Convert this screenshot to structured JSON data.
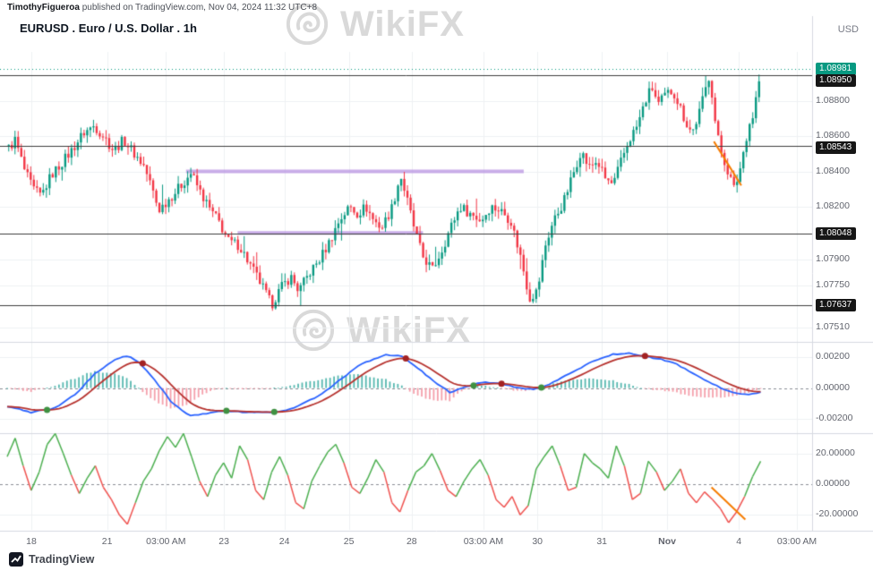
{
  "meta": {
    "attribution_author": "TimothyFigueroa",
    "attribution_rest": " published on TradingView.com, Nov 04, 2024 11:32 UTC+8",
    "title": "EURUSD . Euro / U.S. Dollar . 1h",
    "currency": "USD",
    "watermark": "WikiFX",
    "footer_logo": "TradingView"
  },
  "axes": {
    "price_labels": [
      {
        "text": "1.08981",
        "value": 1.08981,
        "badge": "green"
      },
      {
        "text": "1.08950",
        "value": 1.0895,
        "badge": "black"
      },
      {
        "text": "1.08800",
        "value": 1.088
      },
      {
        "text": "1.08600",
        "value": 1.086
      },
      {
        "text": "1.08543",
        "value": 1.08543,
        "badge": "black"
      },
      {
        "text": "1.08400",
        "value": 1.084
      },
      {
        "text": "1.08200",
        "value": 1.082
      },
      {
        "text": "1.08048",
        "value": 1.08048,
        "badge": "black"
      },
      {
        "text": "1.07900",
        "value": 1.079
      },
      {
        "text": "1.07750",
        "value": 1.0775
      },
      {
        "text": "1.07637",
        "value": 1.07637,
        "badge": "black"
      },
      {
        "text": "1.07510",
        "value": 1.0751
      }
    ],
    "macd_labels": [
      {
        "text": "0.00200",
        "value": 0.002
      },
      {
        "text": "0.00000",
        "value": 0
      },
      {
        "text": "-0.00200",
        "value": -0.002
      }
    ],
    "momentum_labels": [
      {
        "text": "20.00000",
        "value": 20
      },
      {
        "text": "0.00000",
        "value": 0
      },
      {
        "text": "-20.00000",
        "value": -20
      }
    ],
    "time_labels": [
      {
        "label": "18",
        "f": 0.03
      },
      {
        "label": "21",
        "f": 0.124
      },
      {
        "label": "03:00 AM",
        "f": 0.197
      },
      {
        "label": "23",
        "f": 0.269
      },
      {
        "label": "24",
        "f": 0.344
      },
      {
        "label": "25",
        "f": 0.424
      },
      {
        "label": "28",
        "f": 0.502
      },
      {
        "label": "03:00 AM",
        "f": 0.591
      },
      {
        "label": "30",
        "f": 0.658
      },
      {
        "label": "31",
        "f": 0.738
      },
      {
        "label": "Nov",
        "f": 0.819,
        "bold": true
      },
      {
        "label": "4",
        "f": 0.908
      },
      {
        "label": "03:00 AM",
        "f": 0.98
      }
    ]
  },
  "chart_data": {
    "type": "candlestick",
    "title": "EURUSD . Euro / U.S. Dollar . 1h",
    "symbol": "EURUSD",
    "timeframe": "1h",
    "data_fraction": 0.935,
    "colors": {
      "up": "#089981",
      "down": "#f23645",
      "macd_line": "#2962ff",
      "signal_line": "#b6322e",
      "hist_pos": "#57b8b0",
      "hist_neg": "#f5a0ab",
      "dot_up": "#3f9142",
      "dot_down": "#a32222",
      "momentum_pos": "#4caf50",
      "momentum_neg": "#ef5350",
      "trendline": "#f57c00",
      "zone": "#b48ce0",
      "level": "#3c3c3c",
      "current": "#089981"
    },
    "price_panel": {
      "ylim": [
        1.0744,
        1.0908
      ],
      "candles": 240,
      "current_price": 1.08981,
      "levels": [
        {
          "price": 1.0895
        },
        {
          "price": 1.08543
        },
        {
          "price": 1.08048
        },
        {
          "price": 1.07637
        }
      ],
      "zones": [
        {
          "price": 1.084,
          "f_start": 0.222,
          "f_end": 0.641
        },
        {
          "price": 1.0805,
          "f_start": 0.286,
          "f_end": 0.516
        }
      ],
      "trendline": {
        "f_start": 0.877,
        "p_start": 1.0857,
        "f_end": 0.911,
        "p_end": 1.0832
      },
      "path_keyframes": [
        [
          0.0,
          1.0852
        ],
        [
          0.01,
          1.0858
        ],
        [
          0.022,
          1.084
        ],
        [
          0.032,
          1.083
        ],
        [
          0.042,
          1.0826
        ],
        [
          0.055,
          1.0838
        ],
        [
          0.068,
          1.0845
        ],
        [
          0.08,
          1.0852
        ],
        [
          0.095,
          1.0862
        ],
        [
          0.108,
          1.0866
        ],
        [
          0.12,
          1.086
        ],
        [
          0.132,
          1.0852
        ],
        [
          0.145,
          1.0858
        ],
        [
          0.158,
          1.085
        ],
        [
          0.17,
          1.0843
        ],
        [
          0.18,
          1.083
        ],
        [
          0.188,
          1.0818
        ],
        [
          0.2,
          1.0824
        ],
        [
          0.212,
          1.083
        ],
        [
          0.228,
          1.0839
        ],
        [
          0.24,
          1.0828
        ],
        [
          0.252,
          1.0818
        ],
        [
          0.262,
          1.0812
        ],
        [
          0.275,
          1.08
        ],
        [
          0.288,
          1.0798
        ],
        [
          0.3,
          1.0788
        ],
        [
          0.315,
          1.0776
        ],
        [
          0.328,
          1.0764
        ],
        [
          0.34,
          1.0774
        ],
        [
          0.352,
          1.078
        ],
        [
          0.362,
          1.0772
        ],
        [
          0.375,
          1.0782
        ],
        [
          0.388,
          1.079
        ],
        [
          0.4,
          1.08
        ],
        [
          0.412,
          1.0812
        ],
        [
          0.425,
          1.082
        ],
        [
          0.435,
          1.0816
        ],
        [
          0.445,
          1.082
        ],
        [
          0.455,
          1.0812
        ],
        [
          0.465,
          1.0808
        ],
        [
          0.478,
          1.082
        ],
        [
          0.488,
          1.0838
        ],
        [
          0.495,
          1.0826
        ],
        [
          0.505,
          1.0808
        ],
        [
          0.515,
          1.0792
        ],
        [
          0.528,
          1.0784
        ],
        [
          0.54,
          1.0796
        ],
        [
          0.552,
          1.081
        ],
        [
          0.562,
          1.082
        ],
        [
          0.575,
          1.0816
        ],
        [
          0.588,
          1.0812
        ],
        [
          0.6,
          1.082
        ],
        [
          0.612,
          1.0818
        ],
        [
          0.625,
          1.0812
        ],
        [
          0.638,
          1.079
        ],
        [
          0.648,
          1.0768
        ],
        [
          0.658,
          1.0772
        ],
        [
          0.668,
          1.0798
        ],
        [
          0.678,
          1.0812
        ],
        [
          0.69,
          1.0822
        ],
        [
          0.702,
          1.0838
        ],
        [
          0.712,
          1.0852
        ],
        [
          0.722,
          1.0842
        ],
        [
          0.732,
          1.0846
        ],
        [
          0.742,
          1.0836
        ],
        [
          0.752,
          1.0832
        ],
        [
          0.762,
          1.0846
        ],
        [
          0.772,
          1.0858
        ],
        [
          0.782,
          1.0866
        ],
        [
          0.792,
          1.088
        ],
        [
          0.8,
          1.0888
        ],
        [
          0.808,
          1.0878
        ],
        [
          0.818,
          1.0884
        ],
        [
          0.826,
          1.0886
        ],
        [
          0.834,
          1.0878
        ],
        [
          0.842,
          1.0868
        ],
        [
          0.85,
          1.0862
        ],
        [
          0.858,
          1.0872
        ],
        [
          0.865,
          1.0884
        ],
        [
          0.872,
          1.0896
        ],
        [
          0.878,
          1.087
        ],
        [
          0.884,
          1.0854
        ],
        [
          0.89,
          1.0846
        ],
        [
          0.896,
          1.0838
        ],
        [
          0.902,
          1.083
        ],
        [
          0.908,
          1.0838
        ],
        [
          0.914,
          1.0852
        ],
        [
          0.92,
          1.0866
        ],
        [
          0.926,
          1.0872
        ],
        [
          0.93,
          1.0884
        ],
        [
          0.935,
          1.0896
        ]
      ]
    },
    "macd_panel": {
      "ylim": [
        -0.00285,
        0.00291
      ],
      "keyframes": [
        [
          0.0,
          -0.0012
        ],
        [
          0.03,
          -0.0016
        ],
        [
          0.06,
          -0.0013
        ],
        [
          0.085,
          -0.0004
        ],
        [
          0.11,
          0.001
        ],
        [
          0.135,
          0.0019
        ],
        [
          0.15,
          0.0021
        ],
        [
          0.165,
          0.0016
        ],
        [
          0.185,
          0.0004
        ],
        [
          0.205,
          -0.001
        ],
        [
          0.225,
          -0.0018
        ],
        [
          0.245,
          -0.0017
        ],
        [
          0.27,
          -0.0015
        ],
        [
          0.295,
          -0.0016
        ],
        [
          0.32,
          -0.0016
        ],
        [
          0.345,
          -0.0015
        ],
        [
          0.365,
          -0.0011
        ],
        [
          0.39,
          -0.0004
        ],
        [
          0.415,
          0.0006
        ],
        [
          0.44,
          0.0016
        ],
        [
          0.47,
          0.0022
        ],
        [
          0.49,
          0.0021
        ],
        [
          0.51,
          0.0013
        ],
        [
          0.53,
          0.0004
        ],
        [
          0.55,
          -0.0003
        ],
        [
          0.57,
          0.0001
        ],
        [
          0.59,
          0.0004
        ],
        [
          0.61,
          0.0003
        ],
        [
          0.635,
          0.0
        ],
        [
          0.655,
          -0.0001
        ],
        [
          0.675,
          0.0003
        ],
        [
          0.7,
          0.001
        ],
        [
          0.725,
          0.0017
        ],
        [
          0.75,
          0.0022
        ],
        [
          0.77,
          0.0023
        ],
        [
          0.79,
          0.0021
        ],
        [
          0.81,
          0.0019
        ],
        [
          0.83,
          0.0016
        ],
        [
          0.85,
          0.001
        ],
        [
          0.87,
          0.0004
        ],
        [
          0.89,
          -0.0001
        ],
        [
          0.91,
          -0.0004
        ],
        [
          0.925,
          -0.0004
        ],
        [
          0.935,
          -0.0003
        ]
      ]
    },
    "momentum_panel": {
      "ylim": [
        -29.7,
        32.1
      ],
      "values": [
        18,
        30,
        12,
        -4,
        8,
        26,
        33,
        20,
        6,
        -6,
        4,
        12,
        -2,
        -10,
        -20,
        -26,
        -12,
        2,
        10,
        22,
        31,
        24,
        33,
        18,
        2,
        -8,
        6,
        14,
        4,
        25,
        16,
        -4,
        -10,
        8,
        18,
        6,
        -12,
        -16,
        2,
        12,
        21,
        26,
        14,
        -2,
        -6,
        4,
        16,
        8,
        -12,
        -18,
        -4,
        8,
        12,
        20,
        9,
        -4,
        -8,
        2,
        10,
        16,
        6,
        -10,
        -15,
        -8,
        -20,
        -14,
        10,
        18,
        25,
        12,
        -4,
        -2,
        20,
        14,
        10,
        4,
        25,
        12,
        -10,
        -6,
        15,
        8,
        -4,
        2,
        10,
        -6,
        -12,
        -5,
        -10,
        -16,
        -25,
        -18,
        -8,
        5,
        15
      ],
      "trendline": {
        "f_start": 0.874,
        "v_start": -2,
        "f_end": 0.916,
        "v_end": -23
      }
    }
  }
}
